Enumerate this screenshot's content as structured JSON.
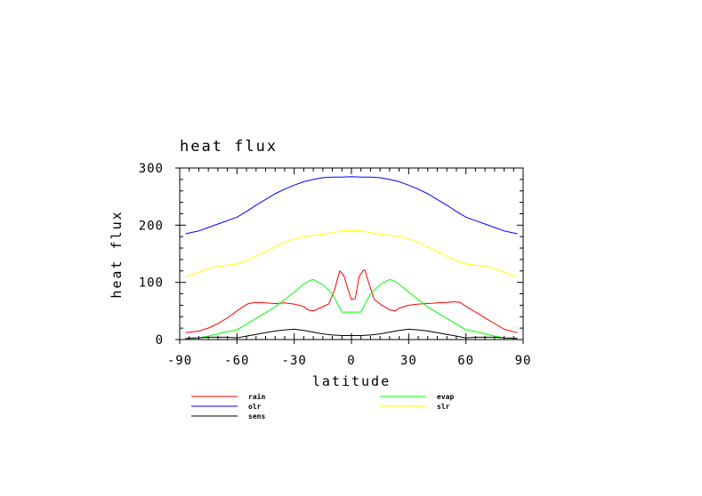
{
  "chart_data": {
    "type": "line",
    "title": "heat flux",
    "xlabel": "latitude",
    "ylabel": "heat flux",
    "xlim": [
      -90,
      90
    ],
    "ylim": [
      0,
      300
    ],
    "x_ticks": [
      -90,
      -60,
      -30,
      0,
      30,
      60,
      90
    ],
    "x_tick_labels": [
      "-90",
      "-60",
      "-30",
      "0",
      "30",
      "60",
      "90"
    ],
    "y_ticks": [
      0,
      100,
      200,
      300
    ],
    "y_tick_labels": [
      "0",
      "100",
      "200",
      "300"
    ],
    "grid": false,
    "legend_position": "bottom",
    "series": [
      {
        "name": "rain",
        "color": "#ff0000",
        "x": [
          -87,
          -80,
          -75,
          -70,
          -65,
          -60,
          -57,
          -54,
          -50,
          -45,
          -40,
          -35,
          -30,
          -25,
          -23,
          -20,
          -16,
          -12,
          -9,
          -7,
          -6,
          -4,
          -2,
          0,
          2,
          4,
          6,
          7,
          9,
          12,
          16,
          20,
          23,
          25,
          30,
          35,
          40,
          45,
          50,
          54,
          57,
          60,
          65,
          70,
          75,
          80,
          87
        ],
        "y": [
          12,
          15,
          20,
          28,
          38,
          50,
          57,
          63,
          65,
          64,
          63,
          64,
          62,
          58,
          52,
          50,
          56,
          62,
          85,
          110,
          120,
          112,
          90,
          70,
          72,
          110,
          120,
          122,
          100,
          70,
          60,
          52,
          50,
          55,
          60,
          62,
          63,
          64,
          65,
          66,
          65,
          58,
          48,
          38,
          28,
          18,
          12
        ]
      },
      {
        "name": "evap",
        "color": "#00ff00",
        "x": [
          -87,
          -80,
          -75,
          -70,
          -65,
          -60,
          -55,
          -50,
          -45,
          -40,
          -35,
          -30,
          -25,
          -22,
          -20,
          -15,
          -10,
          -5,
          0,
          5,
          10,
          15,
          20,
          22,
          25,
          30,
          35,
          40,
          45,
          50,
          55,
          60,
          65,
          70,
          75,
          80,
          87
        ],
        "y": [
          2,
          3,
          6,
          10,
          14,
          17,
          27,
          37,
          47,
          57,
          70,
          83,
          97,
          103,
          105,
          96,
          80,
          48,
          48,
          48,
          80,
          96,
          105,
          103,
          97,
          83,
          70,
          57,
          47,
          37,
          27,
          17,
          14,
          10,
          6,
          3,
          2
        ]
      },
      {
        "name": "olr",
        "color": "#0000ff",
        "x": [
          -87,
          -80,
          -75,
          -70,
          -65,
          -60,
          -55,
          -50,
          -45,
          -40,
          -35,
          -30,
          -25,
          -20,
          -15,
          -10,
          -5,
          0,
          5,
          10,
          15,
          20,
          25,
          30,
          35,
          40,
          45,
          50,
          55,
          60,
          65,
          70,
          75,
          80,
          87
        ],
        "y": [
          185,
          190,
          196,
          202,
          208,
          214,
          224,
          235,
          245,
          255,
          263,
          270,
          276,
          280,
          283,
          284,
          284,
          285,
          284,
          284,
          283,
          280,
          276,
          270,
          263,
          255,
          245,
          235,
          224,
          214,
          208,
          202,
          196,
          190,
          185
        ]
      },
      {
        "name": "slr",
        "color": "#ffff00",
        "x": [
          -87,
          -80,
          -75,
          -70,
          -65,
          -60,
          -55,
          -50,
          -45,
          -40,
          -35,
          -30,
          -25,
          -20,
          -15,
          -10,
          -5,
          0,
          5,
          10,
          15,
          20,
          25,
          30,
          35,
          40,
          45,
          50,
          55,
          60,
          65,
          70,
          75,
          80,
          87
        ],
        "y": [
          110,
          118,
          124,
          128,
          130,
          132,
          138,
          146,
          154,
          162,
          170,
          176,
          180,
          182,
          184,
          187,
          190,
          191,
          190,
          187,
          184,
          182,
          180,
          176,
          170,
          162,
          154,
          146,
          138,
          132,
          130,
          128,
          124,
          118,
          110
        ]
      },
      {
        "name": "sens",
        "color": "#000000",
        "x": [
          -87,
          -80,
          -75,
          -70,
          -65,
          -60,
          -55,
          -50,
          -45,
          -40,
          -35,
          -30,
          -25,
          -20,
          -15,
          -10,
          -5,
          0,
          5,
          10,
          15,
          20,
          25,
          30,
          35,
          40,
          45,
          50,
          55,
          60,
          65,
          70,
          75,
          80,
          87
        ],
        "y": [
          2,
          3,
          4,
          4,
          4,
          3,
          6,
          9,
          12,
          15,
          17,
          18,
          16,
          13,
          10,
          8,
          7,
          7,
          7,
          8,
          10,
          13,
          16,
          18,
          17,
          15,
          12,
          9,
          6,
          3,
          4,
          4,
          4,
          3,
          2
        ]
      }
    ]
  }
}
